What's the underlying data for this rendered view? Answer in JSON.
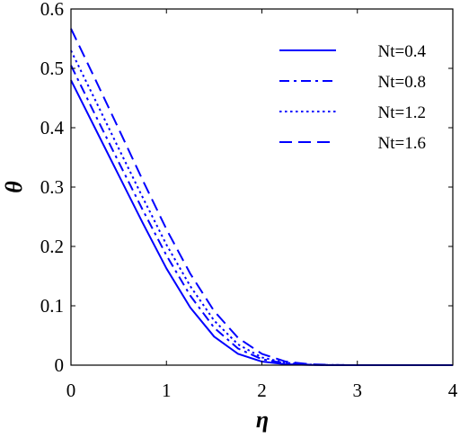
{
  "chart_data": {
    "type": "line",
    "xlabel": "η",
    "ylabel": "θ",
    "xlim": [
      0,
      4
    ],
    "ylim": [
      0,
      0.6
    ],
    "xticks": [
      "0",
      "1",
      "2",
      "3",
      "4"
    ],
    "yticks": [
      "0",
      "0.1",
      "0.2",
      "0.3",
      "0.4",
      "0.5",
      "0.6"
    ],
    "grid": false,
    "legend_position": "top-right",
    "line_color": "#0000ff",
    "series": [
      {
        "name": "Nt=0.4",
        "dash": "solid",
        "x": [
          0,
          0.25,
          0.5,
          0.75,
          1.0,
          1.25,
          1.5,
          1.75,
          2.0,
          2.25,
          2.5,
          2.75,
          3.0,
          4.0
        ],
        "y": [
          0.48,
          0.4,
          0.32,
          0.24,
          0.163,
          0.097,
          0.048,
          0.019,
          0.006,
          0.0015,
          0.0003,
          0,
          0,
          0
        ]
      },
      {
        "name": "Nt=0.8",
        "dash": "dashdot",
        "x": [
          0,
          0.25,
          0.5,
          0.75,
          1.0,
          1.25,
          1.5,
          1.75,
          2.0,
          2.25,
          2.5,
          2.75,
          3.0,
          4.0
        ],
        "y": [
          0.505,
          0.423,
          0.342,
          0.262,
          0.185,
          0.117,
          0.063,
          0.028,
          0.01,
          0.003,
          0.0007,
          0.0001,
          0,
          0
        ]
      },
      {
        "name": "Nt=1.2",
        "dash": "dotted",
        "x": [
          0,
          0.25,
          0.5,
          0.75,
          1.0,
          1.25,
          1.5,
          1.75,
          2.0,
          2.25,
          2.5,
          2.75,
          3.0,
          4.0
        ],
        "y": [
          0.53,
          0.448,
          0.365,
          0.283,
          0.203,
          0.133,
          0.075,
          0.035,
          0.013,
          0.004,
          0.001,
          0.0002,
          0,
          0
        ]
      },
      {
        "name": "Nt=1.6",
        "dash": "dashed",
        "x": [
          0,
          0.25,
          0.5,
          0.75,
          1.0,
          1.25,
          1.5,
          1.75,
          2.0,
          2.25,
          2.5,
          2.75,
          3.0,
          4.0
        ],
        "y": [
          0.567,
          0.483,
          0.398,
          0.312,
          0.229,
          0.154,
          0.091,
          0.046,
          0.019,
          0.006,
          0.0015,
          0.0003,
          0,
          0
        ]
      }
    ]
  }
}
